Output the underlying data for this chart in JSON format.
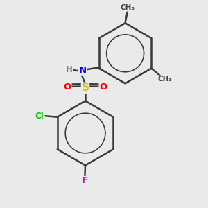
{
  "bg_color": "#ebebeb",
  "bond_color": "#3a3a3a",
  "atom_colors": {
    "N": "#0000ff",
    "H": "#708090",
    "S": "#cccc00",
    "O": "#ff0000",
    "Cl": "#00cc00",
    "F": "#cc00cc",
    "C": "#3a3a3a",
    "Me": "#3a3a3a"
  },
  "bond_width": 1.8,
  "fig_bg": "#eaeaea"
}
